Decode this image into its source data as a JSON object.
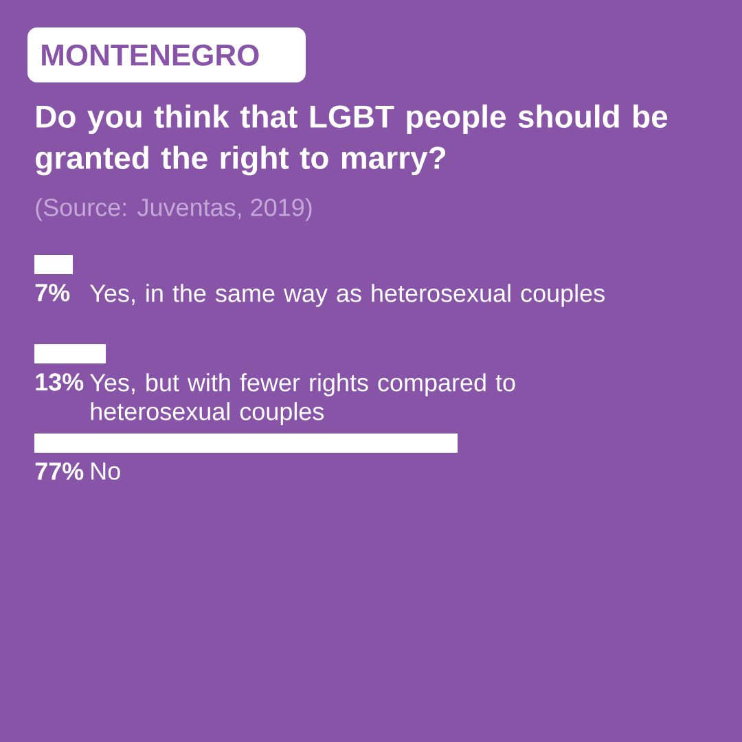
{
  "chart_data": {
    "type": "bar",
    "orientation": "horizontal",
    "subtitle": "MONTENEGRO",
    "title": "Do you think that LGBT people should be granted the right to marry?",
    "annotations": [
      "(Source: Juventas, 2019)"
    ],
    "categories": [
      "Yes, in the same way as heterosexual couples",
      "Yes, but with fewer rights compared to heterosexual couples",
      "No"
    ],
    "values": [
      7,
      13,
      77
    ],
    "value_labels": [
      "7%",
      "13%",
      "77%"
    ],
    "color": "#ffffff"
  }
}
